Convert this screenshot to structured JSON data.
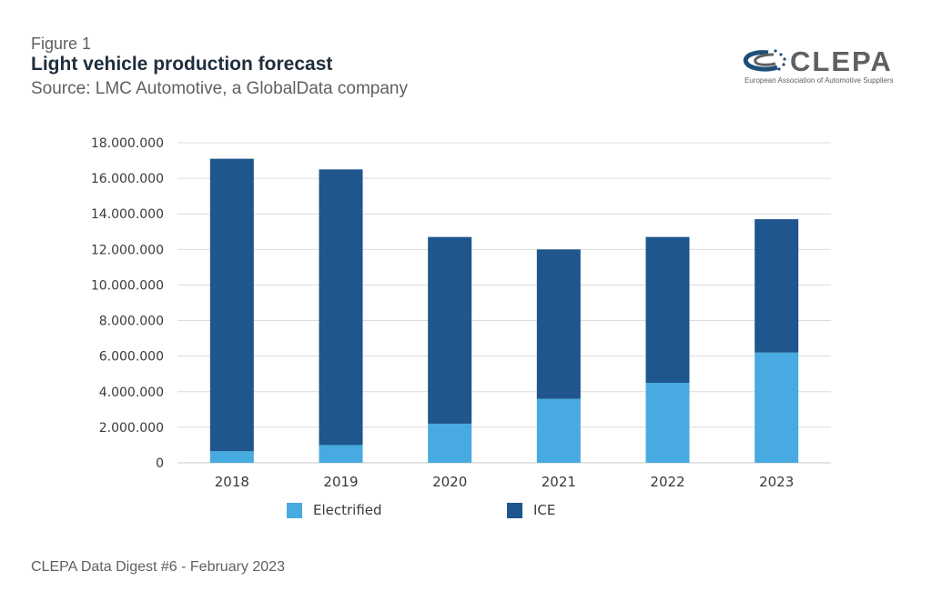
{
  "header": {
    "figure_label": "Figure 1",
    "title": "Light vehicle production forecast",
    "source": "Source: LMC Automotive, a GlobalData company"
  },
  "logo": {
    "name": "CLEPA",
    "subtitle": "European Association of Automotive Suppliers",
    "colors": {
      "navy": "#1f4e79",
      "gray": "#5f6062"
    }
  },
  "footer": {
    "text": "CLEPA Data Digest #6 - February 2023"
  },
  "chart_data": {
    "type": "bar",
    "stacked": true,
    "categories": [
      "2018",
      "2019",
      "2020",
      "2021",
      "2022",
      "2023"
    ],
    "series": [
      {
        "name": "Electrified",
        "color": "#47aae0",
        "values": [
          650000,
          1000000,
          2200000,
          3600000,
          4500000,
          6200000
        ]
      },
      {
        "name": "ICE",
        "color": "#1f568d",
        "values": [
          16450000,
          15500000,
          10500000,
          8400000,
          8200000,
          7500000
        ]
      }
    ],
    "ylim": [
      0,
      18000000
    ],
    "y_ticks": [
      0,
      2000000,
      4000000,
      6000000,
      8000000,
      10000000,
      12000000,
      14000000,
      16000000,
      18000000
    ],
    "y_tick_labels": [
      "0",
      "2.000.000",
      "4.000.000",
      "6.000.000",
      "8.000.000",
      "10.000.000",
      "12.000.000",
      "14.000.000",
      "16.000.000",
      "18.000.000"
    ],
    "grid": true,
    "legend_position": "bottom",
    "title": "",
    "xlabel": "",
    "ylabel": ""
  }
}
